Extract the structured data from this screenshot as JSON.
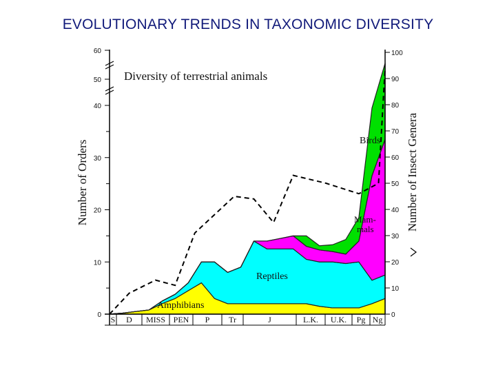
{
  "page": {
    "title": "EVOLUTIONARY TRENDS IN TAXONOMIC DIVERSITY"
  },
  "chart_data": {
    "type": "area",
    "title": "Diversity of terrestrial animals",
    "ylabel_left": "Number of Orders",
    "ylabel_right": "Number of Insect Genera",
    "left_ticks": [
      0,
      10,
      20,
      30,
      40,
      50,
      60
    ],
    "right_ticks": [
      0,
      10,
      20,
      30,
      40,
      50,
      60,
      70,
      80,
      90,
      100
    ],
    "periods": [
      "S",
      "D",
      "MISS",
      "PEN",
      "P",
      "Tr",
      "J",
      "L.K.",
      "U.K.",
      "Pg",
      "Ng"
    ],
    "x": [
      0,
      2,
      4,
      6,
      8,
      10,
      12,
      14,
      16,
      18,
      20,
      22,
      24,
      26,
      28,
      30,
      32,
      34,
      36,
      38,
      40,
      42
    ],
    "stacked_series": [
      {
        "name": "Amphibians",
        "color": "#ffff00",
        "values": [
          0,
          0.2,
          0.5,
          0.8,
          2,
          3,
          4.5,
          6,
          3,
          2,
          2,
          2,
          2,
          2,
          2,
          2,
          1.5,
          1.2,
          1.2,
          1.2,
          2,
          3
        ]
      },
      {
        "name": "Reptiles",
        "color": "#00ffff",
        "values": [
          0,
          0,
          0,
          0,
          0.5,
          0.8,
          1.5,
          4,
          7,
          6,
          7,
          12,
          10.5,
          10.5,
          10.5,
          8.5,
          8.5,
          8.8,
          8.5,
          8.8,
          4.5,
          4.5
        ]
      },
      {
        "name": "Mammals",
        "color": "#ff00ff",
        "values": [
          0,
          0,
          0,
          0,
          0,
          0,
          0,
          0,
          0,
          0,
          0,
          0,
          1.5,
          2,
          2.5,
          2.5,
          2.3,
          2,
          1.8,
          4,
          20,
          26
        ]
      },
      {
        "name": "Birds",
        "color": "#00e000",
        "values": [
          0,
          0,
          0,
          0,
          0,
          0,
          0,
          0,
          0,
          0,
          0,
          0,
          0,
          0,
          0,
          2,
          0.8,
          1.3,
          2.8,
          4.5,
          13,
          22
        ]
      }
    ],
    "insect_genera": {
      "name": "Insect Genera",
      "axis": "right",
      "x": [
        0,
        3,
        7,
        10,
        13,
        19,
        22,
        25,
        28,
        33,
        38,
        41,
        44
      ],
      "values": [
        0,
        8,
        13,
        11,
        31,
        45,
        44,
        35,
        53,
        50,
        46,
        50,
        94
      ]
    },
    "ylim_left": [
      0,
      60
    ],
    "ylim_right": [
      0,
      100
    ]
  }
}
